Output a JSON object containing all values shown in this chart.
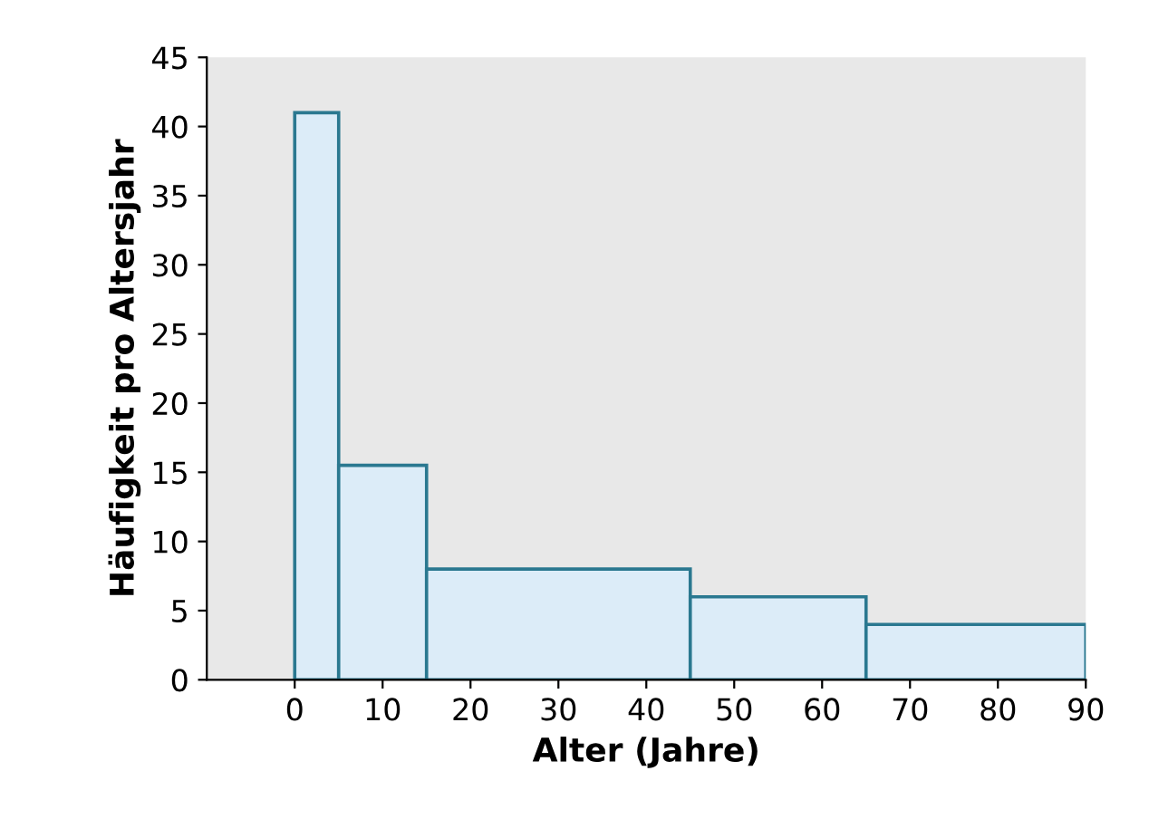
{
  "chart_data": {
    "type": "histogram",
    "xlabel": "Alter (Jahre)",
    "ylabel": "Häufigkeit pro Altersjahr",
    "bins": [
      0,
      5,
      15,
      45,
      65,
      90
    ],
    "values": [
      41,
      15.5,
      8,
      6,
      4
    ],
    "color": "#dcecf8",
    "xlim": [
      -10,
      90
    ],
    "xticks": [
      0,
      10,
      20,
      30,
      40,
      50,
      60,
      70,
      80,
      90
    ],
    "ylim": [
      0,
      45
    ],
    "yticks": [
      0,
      5,
      10,
      15,
      20,
      25,
      30,
      35,
      40,
      45
    ],
    "grid": false
  }
}
